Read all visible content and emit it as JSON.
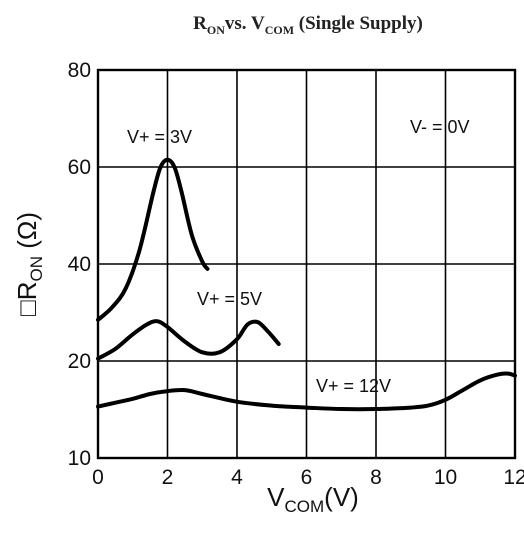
{
  "chart_data": {
    "type": "line",
    "title": {
      "r_main": "R",
      "r_sub": "ON",
      "vs": "vs. ",
      "v_main": "V",
      "v_sub": "COM",
      "suffix": " (Single Supply)"
    },
    "xlabel": {
      "main": "V",
      "sub": "COM",
      "suffix": "(V)"
    },
    "ylabel": {
      "prefix": "□R",
      "sub": "ON",
      "suffix": " (Ω)"
    },
    "xlim": [
      0,
      12
    ],
    "x_ticks": [
      0,
      2,
      4,
      6,
      8,
      10,
      12
    ],
    "y_tick_labels": [
      "80",
      "60",
      "40",
      "20",
      "10"
    ],
    "y_tick_values": [
      80,
      60,
      40,
      20,
      10
    ],
    "grid": true,
    "series": [
      {
        "name": "V+ = 3V",
        "x": [
          0,
          0.4,
          0.8,
          1.2,
          1.6,
          1.8,
          2.0,
          2.2,
          2.4,
          2.7,
          3.0,
          3.15
        ],
        "y": [
          28.5,
          31,
          35,
          43,
          55,
          60,
          61.5,
          60,
          55,
          46,
          40.5,
          39
        ]
      },
      {
        "name": "V+ = 5V",
        "x": [
          0,
          0.5,
          1.0,
          1.4,
          1.7,
          2.0,
          2.5,
          3.0,
          3.5,
          4.0,
          4.3,
          4.6,
          4.9,
          5.2
        ],
        "y": [
          20.5,
          22.5,
          25.5,
          27.5,
          28.2,
          27,
          24,
          21.8,
          21.8,
          24.5,
          27.5,
          28,
          26,
          23.5
        ]
      },
      {
        "name": "V+ = 12V",
        "x": [
          0,
          0.5,
          1.0,
          1.5,
          2.0,
          2.5,
          3.0,
          4.0,
          5.0,
          6.0,
          7.0,
          8.0,
          9.0,
          9.5,
          10.0,
          10.5,
          11.0,
          11.5,
          11.8,
          12.0
        ],
        "y": [
          15.3,
          15.7,
          16.1,
          16.6,
          16.9,
          17.0,
          16.6,
          15.8,
          15.4,
          15.2,
          15.05,
          15.05,
          15.2,
          15.4,
          16.0,
          17.0,
          18.0,
          18.6,
          18.7,
          18.5
        ]
      }
    ],
    "annotations": [
      "V- = 0V"
    ]
  }
}
